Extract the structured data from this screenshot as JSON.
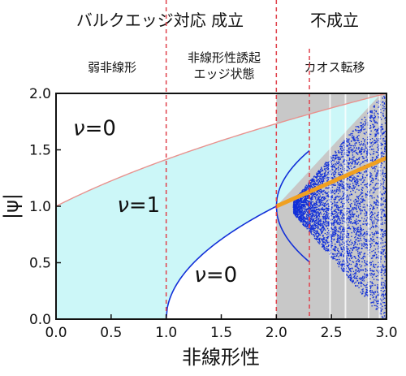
{
  "header": {
    "top_left": "バルクエッジ対応 成立",
    "top_right": "不成立",
    "regime_1": "弱非線形",
    "regime_2a": "非線形性誘起",
    "regime_2b": "エッジ状態",
    "regime_3": "カオス転移"
  },
  "chart_data": {
    "type": "line",
    "xlabel": "非線形性",
    "ylabel": "|ψ|",
    "xlim": [
      0,
      3
    ],
    "ylim": [
      0,
      2
    ],
    "x_ticks": [
      "0.0",
      "0.5",
      "1.0",
      "1.5",
      "2.0",
      "2.5",
      "3.0"
    ],
    "y_ticks": [
      "0.0",
      "0.5",
      "1.0",
      "1.5",
      "2.0"
    ],
    "region_labels": [
      {
        "text": "ν=0",
        "x": 0.35,
        "y": 1.63
      },
      {
        "text": "ν=1",
        "x": 0.75,
        "y": 0.95
      },
      {
        "text": "ν=0",
        "x": 1.45,
        "y": 0.33
      }
    ],
    "vertical_dashed_lines_x": [
      1.0,
      2.0,
      2.3
    ],
    "series": [
      {
        "role": "upper-bound",
        "color": "#e8928e",
        "formula": "sqrt(1+x)",
        "x": [
          0,
          0.5,
          1,
          1.5,
          2,
          2.5,
          3
        ],
        "values": [
          1.0,
          1.22,
          1.41,
          1.58,
          1.73,
          1.87,
          2.0
        ]
      },
      {
        "role": "edge-branch",
        "color": "#1a2fd6",
        "formula": "sqrt(x-1) for x>=1",
        "x": [
          1,
          1.25,
          1.5,
          1.75,
          2
        ],
        "values": [
          0.0,
          0.5,
          0.71,
          0.87,
          1.0
        ]
      },
      {
        "role": "unstable-mode",
        "color": "#f0a020",
        "x": [
          2.0,
          3.0
        ],
        "values": [
          1.0,
          1.43
        ]
      }
    ],
    "colors": {
      "fill_cyan": "#ccf7f8",
      "fill_gray": "#c8c8c8",
      "dash": "#e0414b",
      "chaos_blue": "#1230d8"
    }
  }
}
